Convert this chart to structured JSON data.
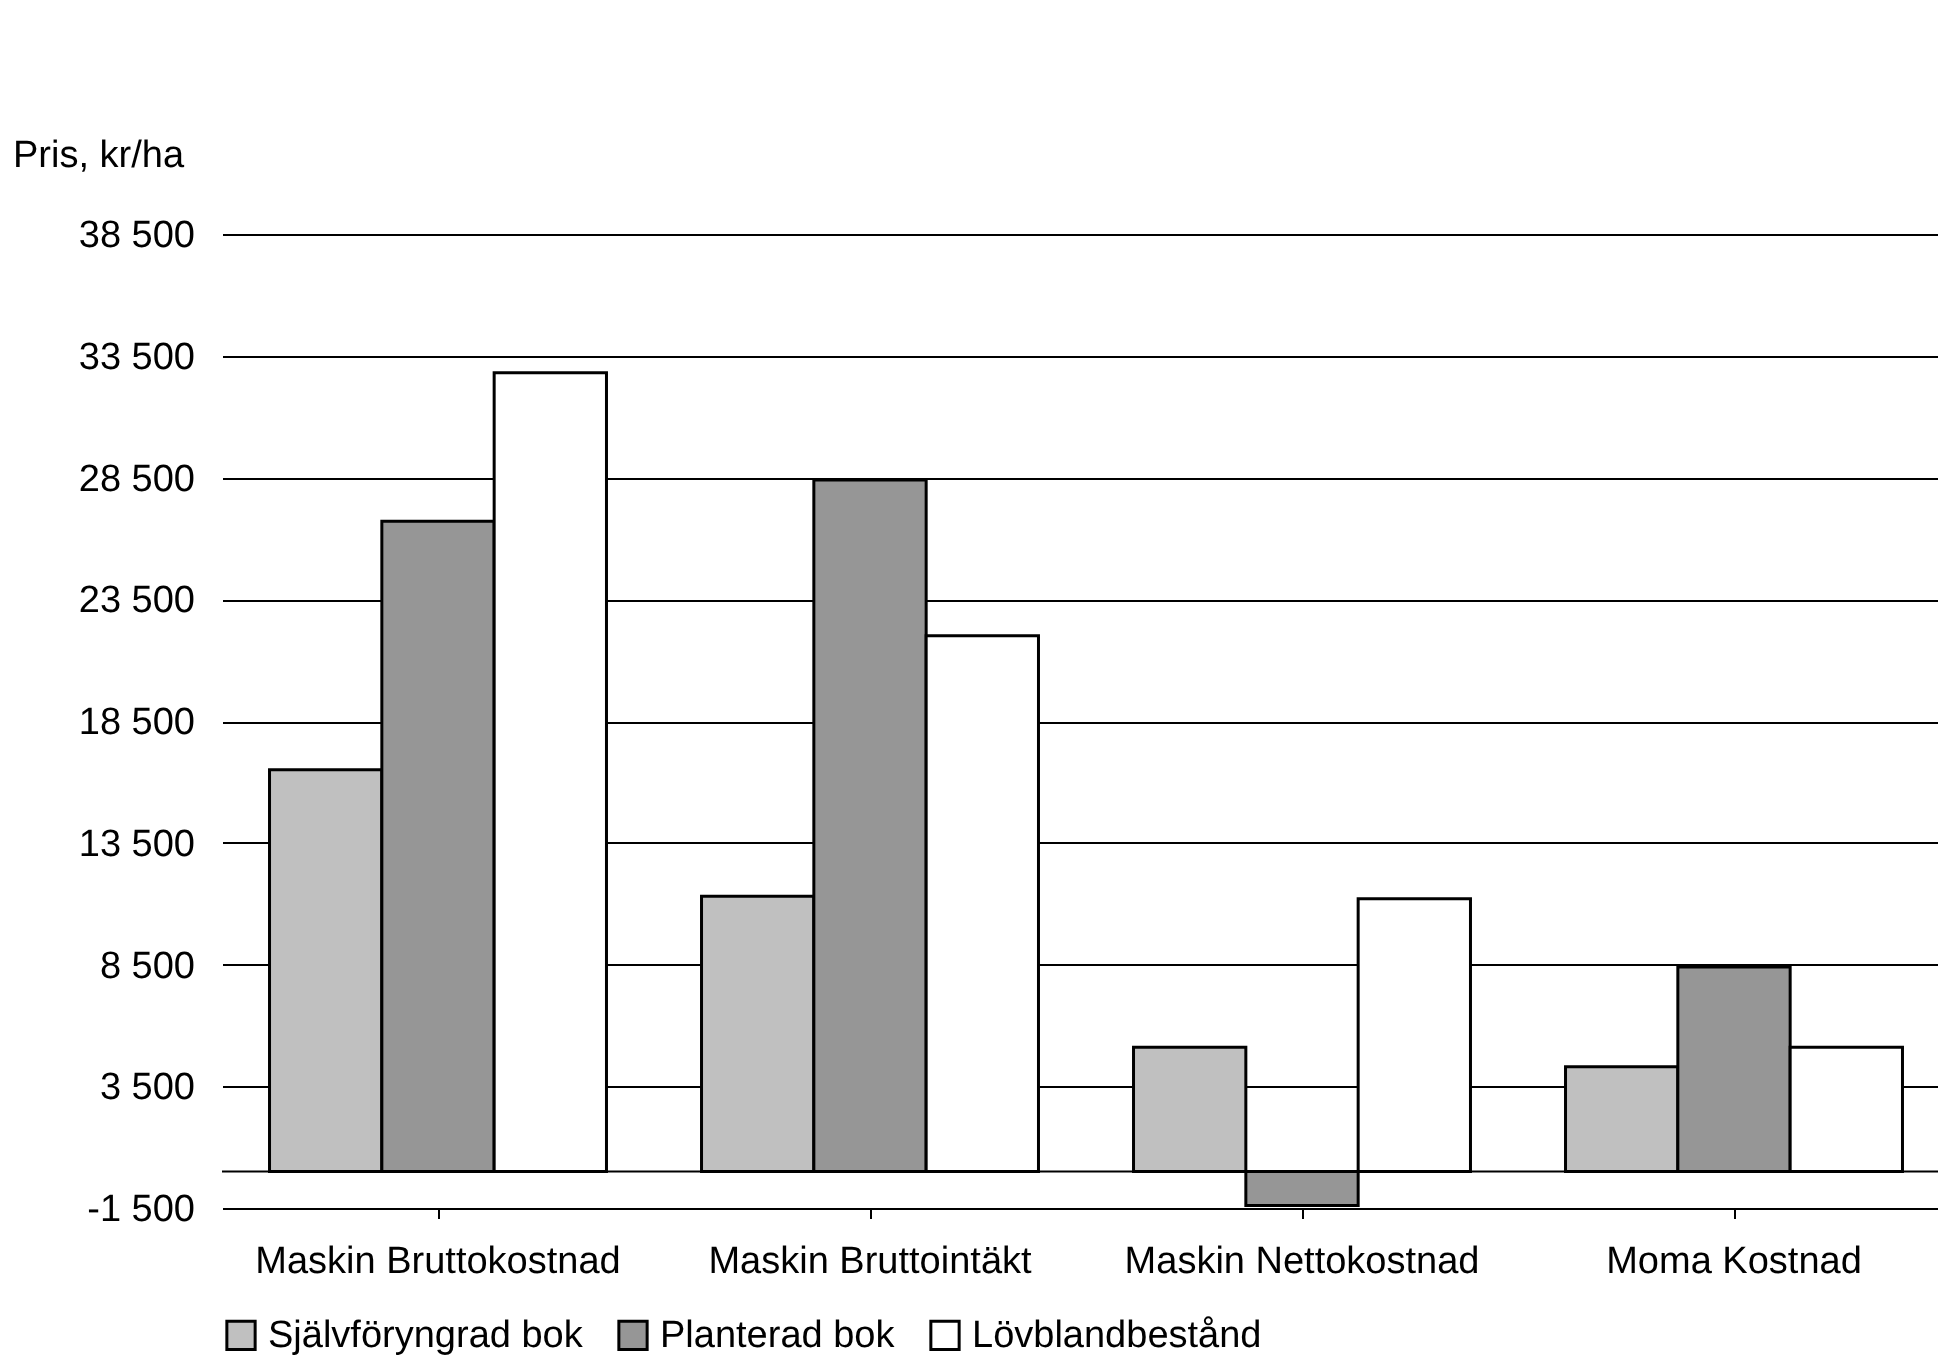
{
  "chart_data": {
    "type": "bar",
    "ylabel": "Pris, kr/ha",
    "categories": [
      "Maskin\nBruttokostnad",
      "Maskin\nBruttointäkt",
      "Maskin\nNettokostnad",
      "Moma Kostnad"
    ],
    "series": [
      {
        "name": "Självföryngrad bok",
        "color": "#c0c0c0",
        "values": [
          16500,
          11300,
          5100,
          4300
        ]
      },
      {
        "name": "Planterad bok",
        "color": "#969696",
        "values": [
          26700,
          28400,
          -1400,
          8400
        ]
      },
      {
        "name": "Lövblandbestånd",
        "color": "#ffffff",
        "values": [
          32800,
          22000,
          11200,
          5100
        ]
      }
    ],
    "ylim": [
      -1500,
      38500
    ],
    "yticks": [
      {
        "value": -1500,
        "label": "-1 500"
      },
      {
        "value": 3500,
        "label": "3 500"
      },
      {
        "value": 8500,
        "label": "8 500"
      },
      {
        "value": 13500,
        "label": "13 500"
      },
      {
        "value": 18500,
        "label": "18 500"
      },
      {
        "value": 23500,
        "label": "23 500"
      },
      {
        "value": 28500,
        "label": "28 500"
      },
      {
        "value": 33500,
        "label": "33 500"
      },
      {
        "value": 38500,
        "label": "38 500"
      }
    ],
    "grid": "y",
    "legend": "bottom"
  }
}
